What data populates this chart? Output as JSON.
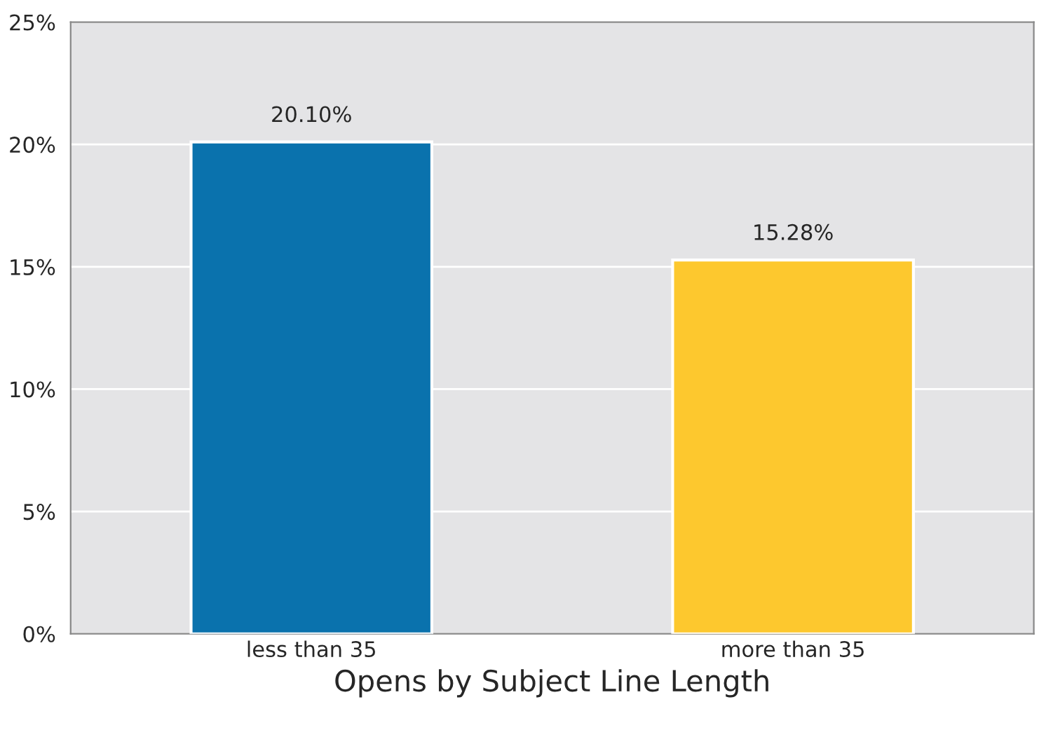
{
  "chart_data": {
    "type": "bar",
    "xlabel": "Opens by Subject Line Length",
    "categories": [
      "less than 35",
      "more than 35"
    ],
    "values": [
      20.1,
      15.28
    ],
    "colors": [
      "#0a72ad",
      "#fdc82e"
    ],
    "value_labels": [
      "20.10%",
      "15.28%"
    ],
    "ylim": [
      0,
      25
    ],
    "yticks": [
      {
        "value": 0,
        "label": "0%"
      },
      {
        "value": 5,
        "label": "5%"
      },
      {
        "value": 10,
        "label": "10%"
      },
      {
        "value": 15,
        "label": "15%"
      },
      {
        "value": 20,
        "label": "20%"
      },
      {
        "value": 25,
        "label": "25%"
      }
    ],
    "grid": "y"
  }
}
